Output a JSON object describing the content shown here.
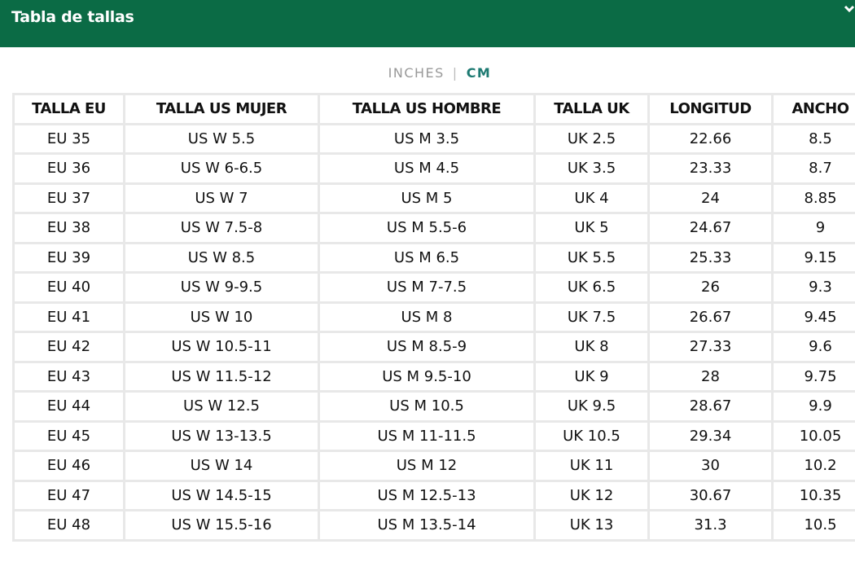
{
  "header": {
    "title": "Tabla de tallas"
  },
  "toggle": {
    "inches": "INCHES",
    "separator": "|",
    "cm": "CM"
  },
  "table": {
    "headers": [
      "TALLA EU",
      "TALLA US MUJER",
      "TALLA US HOMBRE",
      "TALLA UK",
      "LONGITUD",
      "ANCHO"
    ],
    "rows": [
      [
        "EU 35",
        "US W 5.5",
        "US M 3.5",
        "UK 2.5",
        "22.66",
        "8.5"
      ],
      [
        "EU 36",
        "US W 6-6.5",
        "US M 4.5",
        "UK 3.5",
        "23.33",
        "8.7"
      ],
      [
        "EU 37",
        "US W 7",
        "US M 5",
        "UK 4",
        "24",
        "8.85"
      ],
      [
        "EU 38",
        "US W 7.5-8",
        "US M 5.5-6",
        "UK 5",
        "24.67",
        "9"
      ],
      [
        "EU 39",
        "US W 8.5",
        "US M 6.5",
        "UK 5.5",
        "25.33",
        "9.15"
      ],
      [
        "EU 40",
        "US W 9-9.5",
        "US M 7-7.5",
        "UK 6.5",
        "26",
        "9.3"
      ],
      [
        "EU 41",
        "US W 10",
        "US M 8",
        "UK 7.5",
        "26.67",
        "9.45"
      ],
      [
        "EU 42",
        "US W 10.5-11",
        "US M 8.5-9",
        "UK 8",
        "27.33",
        "9.6"
      ],
      [
        "EU 43",
        "US W 11.5-12",
        "US M 9.5-10",
        "UK 9",
        "28",
        "9.75"
      ],
      [
        "EU 44",
        "US W 12.5",
        "US M 10.5",
        "UK 9.5",
        "28.67",
        "9.9"
      ],
      [
        "EU 45",
        "US W 13-13.5",
        "US M 11-11.5",
        "UK 10.5",
        "29.34",
        "10.05"
      ],
      [
        "EU 46",
        "US W 14",
        "US M 12",
        "UK 11",
        "30",
        "10.2"
      ],
      [
        "EU 47",
        "US W 14.5-15",
        "US M 12.5-13",
        "UK 12",
        "30.67",
        "10.35"
      ],
      [
        "EU 48",
        "US W 15.5-16",
        "US M 13.5-14",
        "UK 13",
        "31.3",
        "10.5"
      ]
    ]
  }
}
